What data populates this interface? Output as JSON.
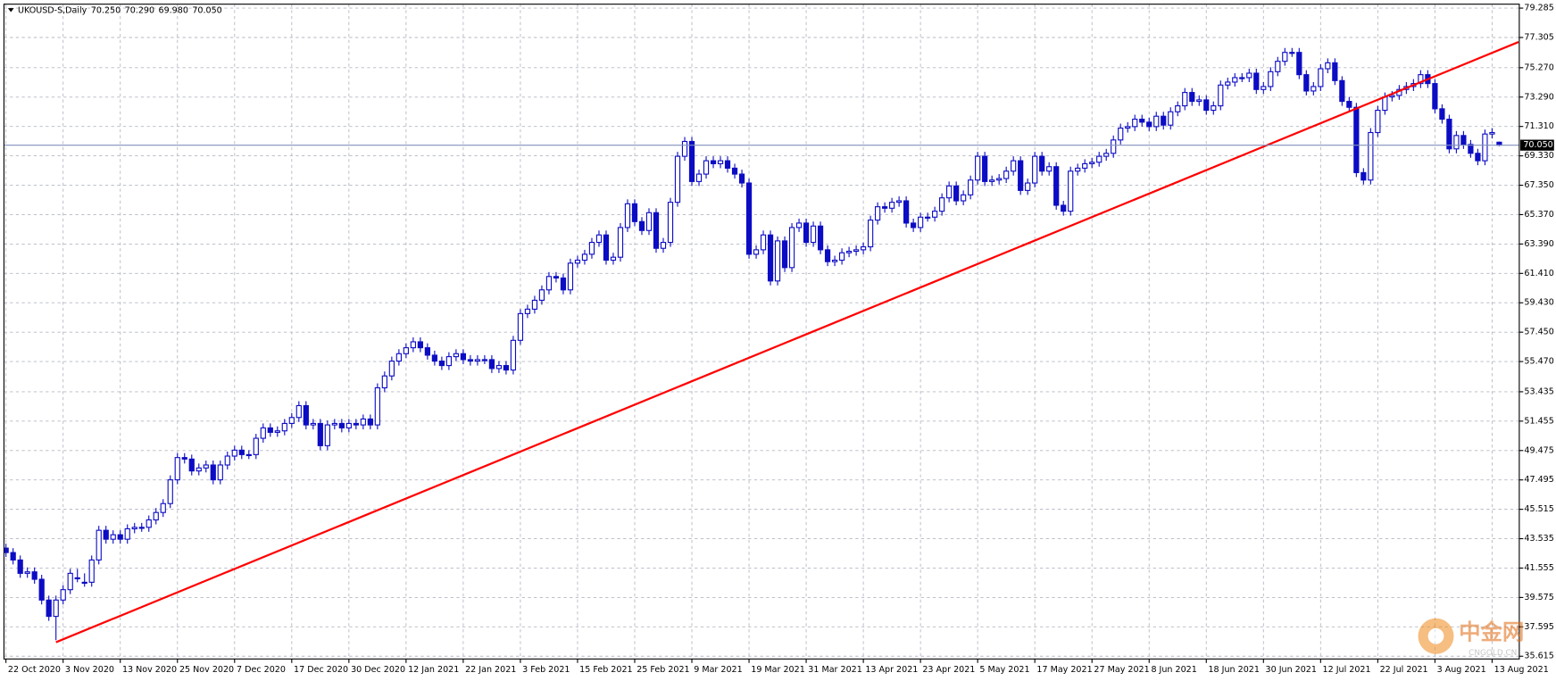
{
  "chart_data": {
    "type": "candlestick",
    "title": "UKOUSD-S,Daily",
    "header_values": [
      {
        "value": 70.25,
        "label": "70.250"
      },
      {
        "value": 70.29,
        "label": "70.290"
      },
      {
        "value": 69.98,
        "label": "69.980"
      },
      {
        "value": 70.05,
        "label": "70.050"
      }
    ],
    "color": "#0c0cc4",
    "bull_fill": "#ffffff",
    "grid": true,
    "grid_color": "#b4b8c2",
    "ylim": [
      35.43,
      79.55
    ],
    "yticks": [
      79.285,
      77.305,
      {
        "value": 75.27,
        "label": "75.270"
      },
      {
        "value": 73.29,
        "label": "73.290"
      },
      {
        "value": 71.31,
        "label": "71.310"
      },
      {
        "value": 69.33,
        "label": "69.330"
      },
      {
        "value": 67.35,
        "label": "67.350"
      },
      {
        "value": 65.37,
        "label": "65.370"
      },
      {
        "value": 63.39,
        "label": "63.390"
      },
      {
        "value": 61.41,
        "label": "61.410"
      },
      {
        "value": 59.43,
        "label": "59.430"
      },
      {
        "value": 57.45,
        "label": "57.450"
      },
      {
        "value": 55.47,
        "label": "55.470"
      },
      53.435,
      51.455,
      49.475,
      47.495,
      45.515,
      43.535,
      41.555,
      39.575,
      37.595,
      35.615
    ],
    "current_price": {
      "value": 70.05,
      "label": "70.050",
      "color": "#8291bd"
    },
    "trendline": {
      "color": "#ff0000",
      "x": [
        7,
        211.7
      ],
      "y": [
        36.56,
        77.0
      ]
    },
    "watermark": {
      "text": "中金网",
      "sub": "CNGOLD.CN"
    },
    "categories": [
      "22 Oct 2020",
      null,
      null,
      null,
      null,
      null,
      null,
      null,
      "3 Nov 2020",
      null,
      null,
      null,
      null,
      null,
      null,
      null,
      "13 Nov 2020",
      null,
      null,
      null,
      null,
      null,
      null,
      null,
      "25 Nov 2020",
      null,
      null,
      null,
      null,
      null,
      null,
      null,
      "7 Dec 2020",
      null,
      null,
      null,
      null,
      null,
      null,
      null,
      "17 Dec 2020",
      null,
      null,
      null,
      null,
      null,
      null,
      null,
      "30 Dec 2020",
      null,
      null,
      null,
      null,
      null,
      null,
      null,
      "12 Jan 2021",
      null,
      null,
      null,
      null,
      null,
      null,
      null,
      "22 Jan 2021",
      null,
      null,
      null,
      null,
      null,
      null,
      null,
      "3 Feb 2021",
      null,
      null,
      null,
      null,
      null,
      null,
      null,
      "15 Feb 2021",
      null,
      null,
      null,
      null,
      null,
      null,
      null,
      "25 Feb 2021",
      null,
      null,
      null,
      null,
      null,
      null,
      null,
      "9 Mar 2021",
      null,
      null,
      null,
      null,
      null,
      null,
      null,
      "19 Mar 2021",
      null,
      null,
      null,
      null,
      null,
      null,
      null,
      "31 Mar 2021",
      null,
      null,
      null,
      null,
      null,
      null,
      null,
      "13 Apr 2021",
      null,
      null,
      null,
      null,
      null,
      null,
      null,
      "23 Apr 2021",
      null,
      null,
      null,
      null,
      null,
      null,
      null,
      "5 May 2021",
      null,
      null,
      null,
      null,
      null,
      null,
      null,
      "17 May 2021",
      null,
      null,
      null,
      null,
      null,
      null,
      null,
      "27 May 2021",
      null,
      null,
      null,
      null,
      null,
      null,
      null,
      "8 Jun 2021",
      null,
      null,
      null,
      null,
      null,
      null,
      null,
      "18 Jun 2021",
      null,
      null,
      null,
      null,
      null,
      null,
      null,
      "30 Jun 2021",
      null,
      null,
      null,
      null,
      null,
      null,
      null,
      "12 Jul 2021",
      null,
      null,
      null,
      null,
      null,
      null,
      null,
      "22 Jul 2021",
      null,
      null,
      null,
      null,
      null,
      null,
      null,
      "3 Aug 2021",
      null,
      null,
      null,
      null,
      null,
      null,
      null,
      "13 Aug 2021",
      null
    ],
    "open": [
      42.9,
      42.6,
      42.1,
      41.2,
      41.3,
      40.8,
      39.4,
      38.3,
      39.4,
      40.1,
      40.9,
      40.6,
      40.6,
      42.1,
      44.1,
      43.5,
      43.8,
      43.5,
      44.2,
      44.3,
      44.3,
      44.8,
      45.3,
      45.9,
      47.5,
      49.0,
      48.9,
      48.1,
      48.3,
      48.5,
      47.5,
      48.5,
      49.1,
      49.5,
      49.2,
      49.2,
      50.3,
      51.0,
      50.7,
      50.8,
      51.3,
      51.7,
      52.5,
      51.2,
      51.3,
      49.8,
      51.2,
      51.3,
      51.0,
      51.3,
      51.2,
      51.6,
      51.2,
      53.7,
      54.5,
      55.5,
      56.0,
      56.4,
      56.8,
      56.4,
      55.9,
      55.5,
      55.2,
      55.8,
      56.0,
      55.6,
      55.5,
      55.6,
      55.6,
      55.0,
      55.2,
      54.9,
      56.9,
      58.7,
      59.0,
      59.6,
      60.3,
      61.2,
      61.1,
      60.3,
      62.1,
      62.3,
      62.7,
      63.5,
      64.0,
      62.3,
      62.5,
      64.5,
      66.1,
      64.9,
      64.3,
      65.5,
      63.1,
      63.5,
      66.2,
      69.3,
      70.3,
      67.6,
      68.1,
      69.0,
      68.8,
      69.0,
      68.5,
      68.1,
      67.5,
      62.7,
      63.0,
      64.0,
      60.9,
      63.6,
      61.8,
      64.5,
      64.8,
      63.5,
      64.6,
      63.0,
      62.2,
      62.3,
      62.8,
      62.9,
      63.0,
      63.2,
      65.0,
      65.9,
      65.8,
      66.2,
      66.3,
      64.8,
      64.5,
      65.2,
      65.2,
      65.6,
      66.5,
      67.3,
      66.3,
      66.7,
      67.7,
      69.3,
      67.6,
      67.7,
      67.8,
      68.3,
      69.0,
      67.0,
      67.5,
      69.3,
      68.3,
      68.6,
      66.0,
      65.6,
      68.3,
      68.5,
      68.8,
      68.9,
      69.3,
      69.5,
      70.4,
      71.2,
      71.3,
      71.8,
      71.6,
      71.3,
      72.0,
      71.4,
      72.3,
      72.7,
      73.6,
      73.0,
      73.1,
      72.4,
      72.7,
      74.1,
      74.3,
      74.6,
      74.6,
      74.9,
      73.8,
      74.0,
      75.0,
      75.7,
      76.3,
      76.3,
      74.8,
      73.7,
      74.0,
      75.2,
      75.6,
      74.4,
      73.0,
      72.6,
      68.2,
      67.7,
      70.9,
      72.4,
      73.3,
      73.4,
      73.8,
      74.0,
      74.2,
      74.8,
      74.2,
      72.5,
      71.8,
      69.8,
      70.7,
      70.1,
      69.5,
      69.0,
      70.8,
      70.25
    ],
    "high": [
      43.2,
      42.9,
      42.4,
      41.6,
      41.6,
      41.1,
      39.7,
      39.7,
      40.4,
      41.5,
      41.5,
      41.2,
      42.4,
      44.4,
      44.4,
      44.1,
      44.1,
      44.5,
      44.6,
      44.6,
      45.1,
      45.6,
      46.2,
      47.8,
      49.3,
      49.3,
      49.2,
      48.6,
      48.8,
      48.8,
      48.8,
      49.4,
      49.8,
      49.8,
      49.5,
      50.6,
      51.3,
      51.3,
      51.1,
      51.6,
      52.0,
      52.8,
      52.8,
      51.6,
      51.6,
      51.5,
      51.6,
      51.6,
      51.6,
      51.6,
      51.9,
      51.9,
      54.0,
      54.8,
      55.8,
      56.3,
      56.7,
      57.1,
      57.1,
      56.7,
      56.2,
      55.8,
      56.1,
      56.3,
      56.3,
      55.9,
      55.9,
      55.9,
      55.9,
      55.5,
      55.5,
      57.2,
      59.0,
      59.3,
      59.9,
      60.6,
      61.5,
      61.5,
      61.4,
      62.4,
      62.6,
      63.0,
      63.8,
      64.3,
      64.3,
      62.8,
      64.8,
      66.4,
      66.4,
      65.2,
      65.8,
      65.8,
      63.8,
      66.5,
      69.6,
      70.6,
      70.6,
      68.4,
      69.3,
      69.3,
      69.3,
      69.3,
      68.8,
      68.4,
      67.8,
      63.3,
      64.3,
      64.3,
      63.9,
      63.9,
      64.8,
      65.1,
      65.1,
      64.9,
      64.9,
      63.3,
      62.6,
      63.1,
      63.2,
      63.3,
      63.5,
      65.3,
      66.2,
      66.2,
      66.5,
      66.6,
      66.6,
      65.1,
      65.5,
      65.5,
      65.9,
      66.8,
      67.6,
      67.6,
      67.0,
      68.0,
      69.6,
      69.6,
      68.0,
      68.1,
      68.6,
      69.3,
      69.3,
      67.8,
      69.6,
      69.6,
      68.9,
      68.9,
      66.3,
      68.6,
      68.8,
      69.1,
      69.2,
      69.6,
      69.8,
      70.7,
      71.5,
      71.6,
      72.1,
      72.1,
      71.9,
      72.3,
      72.3,
      72.6,
      73.0,
      73.9,
      73.9,
      73.4,
      73.4,
      73.0,
      74.4,
      74.6,
      74.9,
      74.9,
      75.2,
      75.2,
      74.3,
      75.3,
      76.0,
      76.6,
      76.6,
      76.6,
      75.1,
      74.3,
      75.5,
      75.9,
      75.9,
      74.7,
      73.3,
      72.9,
      68.5,
      71.2,
      72.7,
      73.6,
      73.7,
      74.1,
      74.3,
      74.5,
      75.1,
      75.1,
      74.5,
      72.8,
      72.1,
      71.0,
      71.0,
      70.4,
      69.8,
      71.1,
      71.2,
      70.29
    ],
    "low": [
      42.3,
      41.8,
      40.9,
      40.9,
      40.5,
      39.1,
      38.0,
      36.7,
      39.1,
      39.8,
      40.6,
      40.3,
      40.3,
      41.8,
      43.2,
      43.2,
      43.2,
      43.2,
      43.9,
      44.0,
      44.0,
      44.5,
      45.0,
      45.6,
      47.2,
      48.6,
      47.8,
      47.8,
      48.0,
      47.2,
      47.2,
      48.2,
      48.8,
      48.9,
      48.9,
      48.9,
      50.0,
      50.4,
      50.4,
      50.5,
      51.0,
      51.4,
      50.9,
      50.9,
      49.5,
      49.5,
      50.9,
      50.7,
      50.7,
      50.9,
      50.9,
      50.9,
      50.9,
      53.4,
      54.2,
      55.2,
      55.7,
      56.1,
      56.1,
      55.6,
      55.2,
      54.9,
      54.9,
      55.5,
      55.3,
      55.2,
      55.2,
      55.3,
      54.7,
      54.7,
      54.6,
      54.6,
      56.6,
      58.4,
      58.7,
      59.3,
      60.0,
      60.8,
      60.0,
      60.0,
      61.8,
      62.0,
      62.4,
      63.2,
      62.0,
      62.0,
      62.2,
      64.2,
      64.6,
      64.0,
      64.0,
      62.8,
      62.8,
      63.2,
      65.9,
      69.0,
      67.3,
      67.3,
      67.8,
      68.5,
      68.5,
      68.2,
      67.8,
      67.2,
      62.4,
      62.4,
      62.7,
      60.6,
      60.6,
      61.5,
      61.5,
      64.2,
      63.2,
      63.2,
      62.7,
      61.9,
      61.9,
      62.0,
      62.5,
      62.6,
      62.7,
      62.9,
      64.7,
      65.5,
      65.5,
      65.9,
      64.5,
      64.2,
      64.2,
      64.9,
      64.9,
      65.3,
      66.2,
      66.0,
      66.0,
      66.4,
      67.4,
      67.3,
      67.3,
      67.4,
      67.5,
      68.0,
      66.7,
      66.7,
      67.2,
      68.0,
      68.0,
      65.7,
      65.3,
      65.3,
      68.0,
      68.2,
      68.5,
      68.6,
      69.0,
      69.2,
      70.1,
      70.9,
      71.0,
      71.3,
      71.0,
      71.0,
      71.1,
      71.1,
      72.0,
      72.4,
      72.7,
      72.7,
      72.1,
      72.1,
      72.4,
      73.8,
      74.0,
      74.3,
      74.3,
      73.5,
      73.5,
      73.7,
      74.7,
      75.4,
      76.0,
      74.5,
      73.4,
      73.4,
      73.7,
      74.9,
      74.1,
      72.7,
      72.3,
      67.9,
      67.4,
      67.4,
      70.6,
      72.1,
      73.0,
      73.1,
      73.5,
      73.7,
      73.9,
      73.9,
      72.2,
      71.5,
      69.5,
      69.5,
      69.8,
      69.2,
      68.7,
      68.7,
      70.5,
      69.98
    ],
    "close": [
      42.6,
      42.1,
      41.2,
      41.3,
      40.8,
      39.4,
      38.3,
      39.4,
      40.1,
      41.2,
      40.9,
      40.6,
      42.1,
      44.1,
      43.5,
      43.8,
      43.5,
      44.2,
      44.3,
      44.3,
      44.8,
      45.3,
      45.9,
      47.5,
      49.0,
      48.9,
      48.1,
      48.3,
      48.5,
      47.5,
      48.5,
      49.1,
      49.5,
      49.2,
      49.2,
      50.3,
      51.0,
      50.7,
      50.8,
      51.3,
      51.7,
      52.5,
      51.2,
      51.3,
      49.8,
      51.2,
      51.3,
      51.0,
      51.3,
      51.2,
      51.6,
      51.2,
      53.7,
      54.5,
      55.5,
      56.0,
      56.4,
      56.8,
      56.4,
      55.9,
      55.5,
      55.2,
      55.8,
      56.0,
      55.6,
      55.5,
      55.6,
      55.6,
      55.0,
      55.2,
      54.9,
      56.9,
      58.7,
      59.0,
      59.6,
      60.3,
      61.2,
      61.1,
      60.3,
      62.1,
      62.3,
      62.7,
      63.5,
      64.0,
      62.3,
      62.5,
      64.5,
      66.1,
      64.9,
      64.3,
      65.5,
      63.1,
      63.5,
      66.2,
      69.3,
      70.3,
      67.6,
      68.1,
      69.0,
      68.8,
      69.0,
      68.5,
      68.1,
      67.5,
      62.7,
      63.0,
      64.0,
      60.9,
      63.6,
      61.8,
      64.5,
      64.8,
      63.5,
      64.6,
      63.0,
      62.2,
      62.3,
      62.8,
      62.9,
      63.0,
      63.2,
      65.0,
      65.9,
      65.8,
      66.2,
      66.3,
      64.8,
      64.5,
      65.2,
      65.2,
      65.6,
      66.5,
      67.3,
      66.3,
      66.7,
      67.7,
      69.3,
      67.6,
      67.7,
      67.8,
      68.3,
      69.0,
      67.0,
      67.5,
      69.3,
      68.3,
      68.6,
      66.0,
      65.6,
      68.3,
      68.5,
      68.8,
      68.9,
      69.3,
      69.5,
      70.4,
      71.2,
      71.3,
      71.8,
      71.6,
      71.3,
      72.0,
      71.4,
      72.3,
      72.7,
      73.6,
      73.0,
      73.1,
      72.4,
      72.7,
      74.1,
      74.3,
      74.6,
      74.6,
      74.9,
      73.8,
      74.0,
      75.0,
      75.7,
      76.3,
      76.3,
      74.8,
      73.7,
      74.0,
      75.2,
      75.6,
      74.4,
      73.0,
      72.6,
      68.2,
      67.7,
      70.9,
      72.4,
      73.3,
      73.4,
      73.8,
      74.0,
      74.2,
      74.8,
      74.2,
      72.5,
      71.8,
      69.8,
      70.7,
      70.1,
      69.5,
      69.0,
      70.8,
      70.9,
      70.05
    ]
  }
}
